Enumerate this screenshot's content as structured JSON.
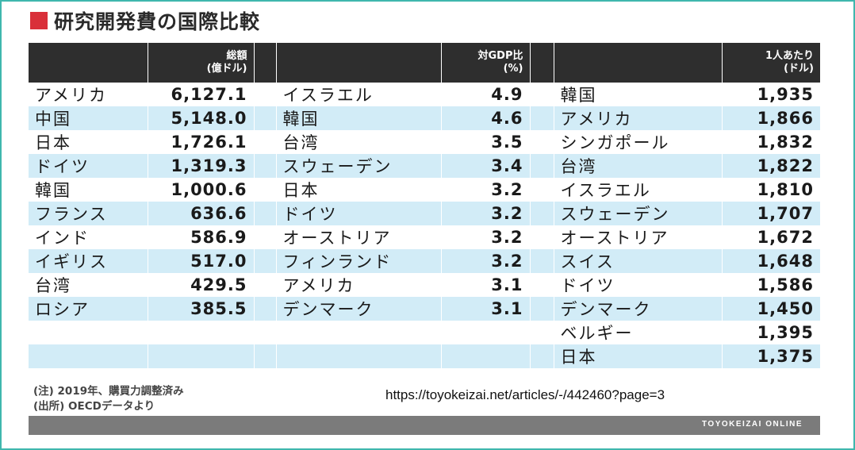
{
  "title": "研究開発費の国際比較",
  "chart_data": {
    "type": "table",
    "columns": [
      {
        "header_line1": "総額",
        "header_line2": "(億ドル)"
      },
      {
        "header_line1": "対GDP比",
        "header_line2": "(%)"
      },
      {
        "header_line1": "1人あたり",
        "header_line2": "(ドル)"
      }
    ],
    "rows": [
      {
        "a_name": "アメリカ",
        "a_val": "6,127.1",
        "b_name": "イスラエル",
        "b_val": "4.9",
        "c_name": "韓国",
        "c_val": "1,935"
      },
      {
        "a_name": "中国",
        "a_val": "5,148.0",
        "b_name": "韓国",
        "b_val": "4.6",
        "c_name": "アメリカ",
        "c_val": "1,866"
      },
      {
        "a_name": "日本",
        "a_val": "1,726.1",
        "b_name": "台湾",
        "b_val": "3.5",
        "c_name": "シンガポール",
        "c_val": "1,832"
      },
      {
        "a_name": "ドイツ",
        "a_val": "1,319.3",
        "b_name": "スウェーデン",
        "b_val": "3.4",
        "c_name": "台湾",
        "c_val": "1,822"
      },
      {
        "a_name": "韓国",
        "a_val": "1,000.6",
        "b_name": "日本",
        "b_val": "3.2",
        "c_name": "イスラエル",
        "c_val": "1,810"
      },
      {
        "a_name": "フランス",
        "a_val": "636.6",
        "b_name": "ドイツ",
        "b_val": "3.2",
        "c_name": "スウェーデン",
        "c_val": "1,707"
      },
      {
        "a_name": "インド",
        "a_val": "586.9",
        "b_name": "オーストリア",
        "b_val": "3.2",
        "c_name": "オーストリア",
        "c_val": "1,672"
      },
      {
        "a_name": "イギリス",
        "a_val": "517.0",
        "b_name": "フィンランド",
        "b_val": "3.2",
        "c_name": "スイス",
        "c_val": "1,648"
      },
      {
        "a_name": "台湾",
        "a_val": "429.5",
        "b_name": "アメリカ",
        "b_val": "3.1",
        "c_name": "ドイツ",
        "c_val": "1,586"
      },
      {
        "a_name": "ロシア",
        "a_val": "385.5",
        "b_name": "デンマーク",
        "b_val": "3.1",
        "c_name": "デンマーク",
        "c_val": "1,450"
      },
      {
        "a_name": "",
        "a_val": "",
        "b_name": "",
        "b_val": "",
        "c_name": "ベルギー",
        "c_val": "1,395"
      },
      {
        "a_name": "",
        "a_val": "",
        "b_name": "",
        "b_val": "",
        "c_name": "日本",
        "c_val": "1,375"
      }
    ]
  },
  "notes": [
    "(注) 2019年、購買力調整済み",
    "(出所) OECDデータより"
  ],
  "source_url": "https://toyokeizai.net/articles/-/442460?page=3",
  "brand": "TOYOKEIZAI ONLINE",
  "colors": {
    "accent": "#d9303a",
    "header_bg": "#2e2e2e",
    "stripe": "#d2ecf7",
    "frame": "#3fb7ad"
  }
}
